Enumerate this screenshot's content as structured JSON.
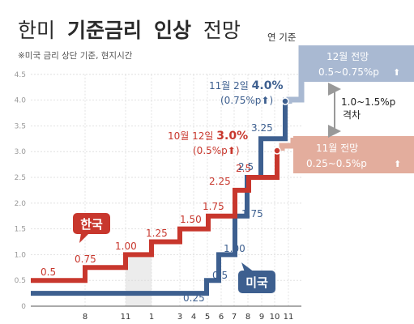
{
  "title": {
    "part1": "한미",
    "part2": "기준금리",
    "part3": "인상",
    "part4": "전망"
  },
  "subtitle": "※미국 금리 상단 기준, 현지시간",
  "colors": {
    "korea": "#c8372d",
    "us": "#3d5f8f",
    "korea_forecast": "#e3ad9d",
    "us_forecast": "#a9b9d2",
    "shade": "#ececec"
  },
  "chart_data": {
    "type": "line",
    "ylim": [
      0,
      4.5
    ],
    "yticks": [
      "0",
      "0.5",
      "1.0",
      "1.5",
      "2.0",
      "2.5",
      "3.0",
      "3.5",
      "4.0",
      "4.5"
    ],
    "x_tick_labels": [
      "8",
      "11",
      "1",
      "3",
      "4",
      "5",
      "6",
      "7",
      "8",
      "9",
      "10",
      "11"
    ],
    "series": [
      {
        "name": "한국",
        "color": "#c8372d",
        "value_labels": [
          "0.5",
          "0.75",
          "1.00",
          "1.25",
          "1.50",
          "1.75",
          "2.25",
          "2.5",
          "3.0"
        ],
        "values": [
          0.5,
          0.75,
          1.0,
          1.25,
          1.5,
          1.75,
          2.25,
          2.5,
          3.0
        ]
      },
      {
        "name": "미국",
        "color": "#3d5f8f",
        "value_labels": [
          "0.25",
          "0.5",
          "1.00",
          "1.75",
          "2.5",
          "3.25",
          "4.0"
        ],
        "values": [
          0.25,
          0.5,
          1.0,
          1.75,
          2.5,
          3.25,
          4.0
        ]
      }
    ],
    "annotations": {
      "korea_latest_date": "10월 12일",
      "korea_latest_value": "3.0%",
      "korea_latest_change": "(0.5%p",
      "us_latest_date": "11월 2일",
      "us_latest_value": "4.0%",
      "us_latest_change": "(0.75%p",
      "us_forecast_title": "12월 전망",
      "us_forecast_value": "0.5~0.75%p",
      "korea_forecast_title": "11월 전망",
      "korea_forecast_value": "0.25~0.5%p",
      "gap_value": "1.0~1.5%p",
      "gap_label": "격차",
      "year_end_label": "연 기준"
    },
    "legend": {
      "korea": "한국",
      "us": "미국"
    }
  }
}
